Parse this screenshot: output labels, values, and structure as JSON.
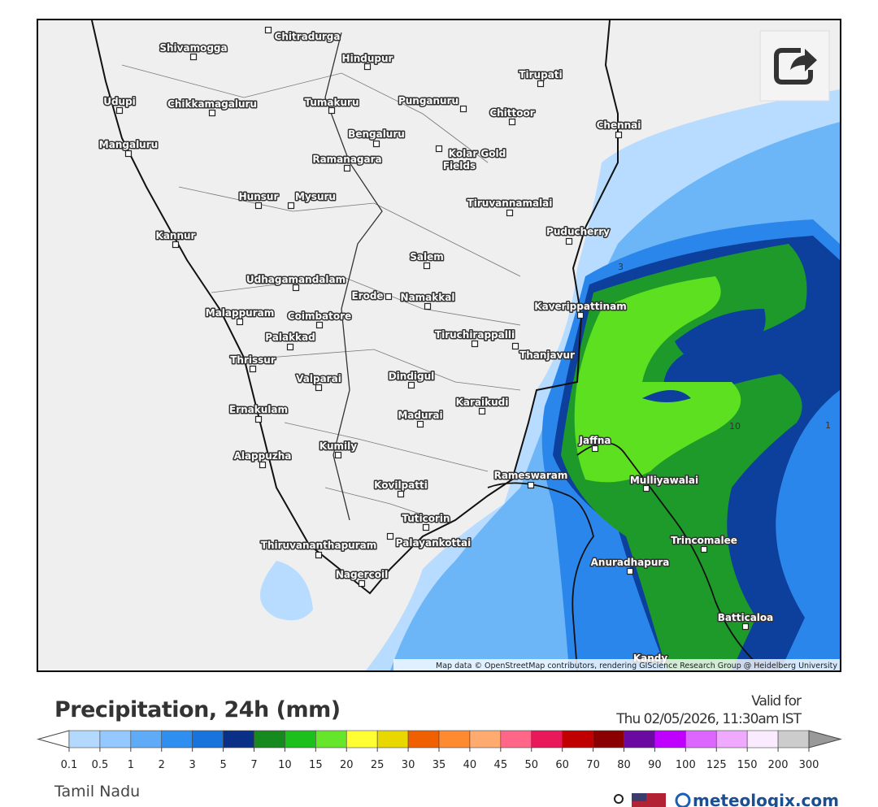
{
  "map": {
    "cities": [
      "Shivamogga",
      "Chitradurga",
      "Hindupur",
      "Tirupati",
      "Udupi",
      "Chikkamagaluru",
      "Tumakuru",
      "Punganuru",
      "Chittoor",
      "Chennai",
      "Bengaluru",
      "Mangaluru",
      "Kolar Gold",
      "Fields",
      "Ramanagara",
      "Hunsur",
      "Mysuru",
      "Tiruvannamalai",
      "Kannur",
      "Puducherry",
      "Salem",
      "Udhagamandalam",
      "Erode",
      "Namakkal",
      "Kaverippattinam",
      "Malappuram",
      "Coimbatore",
      "Palakkad",
      "Tiruchirappalli",
      "Thanjavur",
      "Thrissur",
      "Valparai",
      "Dindigul",
      "Karaikudi",
      "Ernakulam",
      "Madurai",
      "Jaffna",
      "Kumily",
      "Alappuzha",
      "Rameswaram",
      "Mulliyawalai",
      "Kovilpatti",
      "Tuticorin",
      "Trincomalee",
      "Thiruvananthapuram",
      "Palayankottai",
      "Anuradhapura",
      "Nagercoil",
      "Batticaloa",
      "Kandy"
    ],
    "contour_labels": [
      "3",
      "10",
      "1"
    ],
    "attribution": "Map data © OpenStreetMap contributors, rendering GIScience Research Group @ Heidelberg University"
  },
  "footer": {
    "title": "Precipitation, 24h (mm)",
    "valid_label": "Valid for",
    "valid_time": "Thu 02/05/2026, 11:30am IST",
    "legend": [
      "0.1",
      "0.5",
      "1",
      "2",
      "3",
      "5",
      "7",
      "10",
      "15",
      "20",
      "25",
      "30",
      "35",
      "40",
      "45",
      "50",
      "60",
      "70",
      "80",
      "90",
      "100",
      "125",
      "150",
      "200",
      "300"
    ],
    "region": "Tamil Nadu",
    "brand": "meteologix.com"
  }
}
